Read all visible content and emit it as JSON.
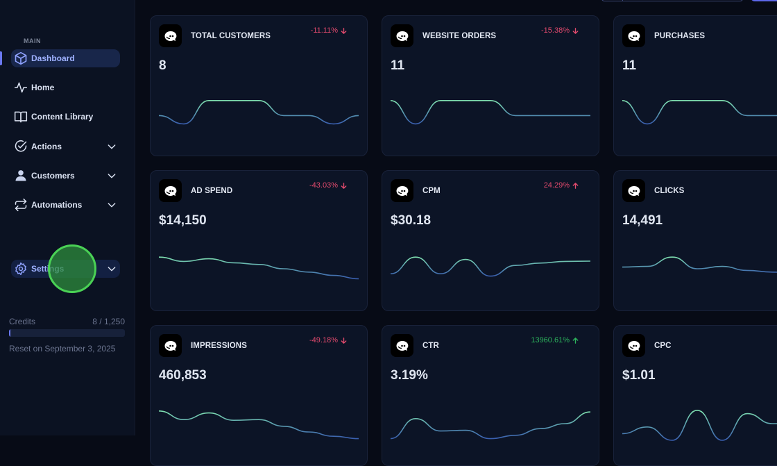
{
  "sidebar": {
    "section_label": "MAIN",
    "items": [
      {
        "label": "Dashboard",
        "icon": "cube-icon",
        "active": true,
        "expandable": false
      },
      {
        "label": "Home",
        "icon": "activity-icon",
        "active": false,
        "expandable": false
      },
      {
        "label": "Content Library",
        "icon": "book-icon",
        "active": false,
        "expandable": false
      },
      {
        "label": "Actions",
        "icon": "check-circle-icon",
        "active": false,
        "expandable": true
      },
      {
        "label": "Customers",
        "icon": "user-icon",
        "active": false,
        "expandable": true
      },
      {
        "label": "Automations",
        "icon": "repeat-icon",
        "active": false,
        "expandable": true
      },
      {
        "label": "Settings",
        "icon": "gear-icon",
        "active": false,
        "expandable": true
      }
    ],
    "credits": {
      "label": "Credits",
      "value_text": "8 / 1,250",
      "used": 8,
      "total": 1250,
      "reset_text": "Reset on September 3, 2025"
    }
  },
  "colors": {
    "accent": "#6b78f0",
    "negative": "#e24a6d",
    "positive": "#2db55d",
    "spark_start": "#7fe0b0",
    "spark_end": "#3a5fb0"
  },
  "cards": [
    {
      "title": "TOTAL CUSTOMERS",
      "value": "8",
      "delta": "-11.11%",
      "direction": "down",
      "tone": "negative",
      "trend": [
        0.45,
        0.2,
        0.9,
        0.9,
        0.9,
        0.45,
        0.45,
        0.2,
        0.45
      ]
    },
    {
      "title": "WEBSITE ORDERS",
      "value": "11",
      "delta": "-15.38%",
      "direction": "down",
      "tone": "negative",
      "trend": [
        0.9,
        0.2,
        0.9,
        0.9,
        0.9,
        0.45,
        0.45,
        0.45,
        0.45
      ]
    },
    {
      "title": "PURCHASES",
      "value": "11",
      "delta": "",
      "direction": "down",
      "tone": "negative",
      "trend": [
        0.9,
        0.2,
        0.9,
        0.9,
        0.9,
        0.45,
        0.45,
        0.45,
        0.45
      ]
    },
    {
      "title": "AD SPEND",
      "value": "$14,150",
      "delta": "-43.03%",
      "direction": "down",
      "tone": "negative",
      "trend": [
        0.85,
        0.72,
        0.8,
        0.68,
        0.63,
        0.5,
        0.4,
        0.3,
        0.2
      ]
    },
    {
      "title": "CPM",
      "value": "$30.18",
      "delta": "24.29%",
      "direction": "up",
      "tone": "negative",
      "trend": [
        0.35,
        0.85,
        0.35,
        0.78,
        0.28,
        0.6,
        0.67,
        0.72,
        0.73
      ]
    },
    {
      "title": "CLICKS",
      "value": "14,491",
      "delta": "",
      "direction": "up",
      "tone": "negative",
      "trend": [
        0.55,
        0.57,
        0.85,
        0.5,
        0.57,
        0.45,
        0.4,
        0.38,
        0.35
      ]
    },
    {
      "title": "IMPRESSIONS",
      "value": "460,853",
      "delta": "-49.18%",
      "direction": "down",
      "tone": "negative",
      "trend": [
        0.88,
        0.62,
        0.82,
        0.6,
        0.62,
        0.42,
        0.25,
        0.12,
        0.05
      ]
    },
    {
      "title": "CTR",
      "value": "3.19%",
      "delta": "13960.61%",
      "direction": "up",
      "tone": "positive",
      "trend": [
        0.05,
        0.65,
        0.28,
        0.3,
        0.05,
        0.15,
        0.35,
        0.5,
        0.85
      ]
    },
    {
      "title": "CPC",
      "value": "$1.01",
      "delta": "",
      "direction": "up",
      "tone": "negative",
      "trend": [
        0.2,
        0.4,
        0.0,
        0.9,
        0.0,
        0.8,
        0.5,
        0.5,
        0.5
      ]
    }
  ]
}
